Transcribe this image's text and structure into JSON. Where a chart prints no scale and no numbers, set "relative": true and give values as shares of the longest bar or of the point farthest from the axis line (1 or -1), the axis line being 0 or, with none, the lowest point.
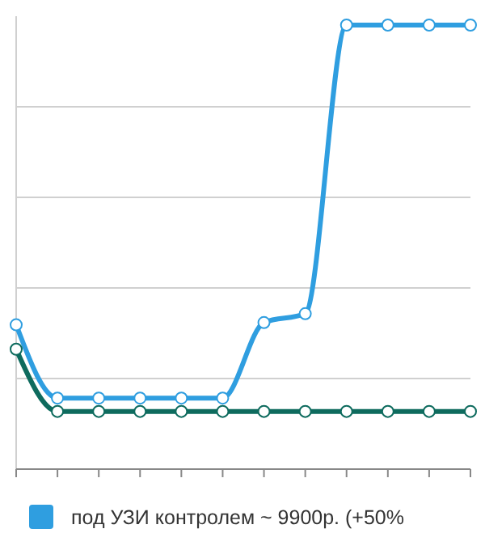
{
  "chart_data": {
    "type": "line",
    "relative": true,
    "categories": [
      null,
      null,
      null,
      null,
      null,
      null,
      null,
      null,
      null,
      null,
      null,
      null
    ],
    "series": [
      {
        "name": "под УЗИ контролем ~ 9900р. (+50%",
        "color": "#2f9ee0",
        "values": [
          0.325,
          0.16,
          0.16,
          0.16,
          0.16,
          0.16,
          0.33,
          0.35,
          1,
          1,
          1,
          1
        ]
      },
      {
        "color": "#0e6b5e",
        "values": [
          0.27,
          0.13,
          0.13,
          0.13,
          0.13,
          0.13,
          0.13,
          0.13,
          0.13,
          0.13,
          0.13,
          0.13
        ]
      }
    ],
    "grid": "y",
    "legend": "bottom",
    "marker": "circle",
    "line_style": "solid"
  }
}
